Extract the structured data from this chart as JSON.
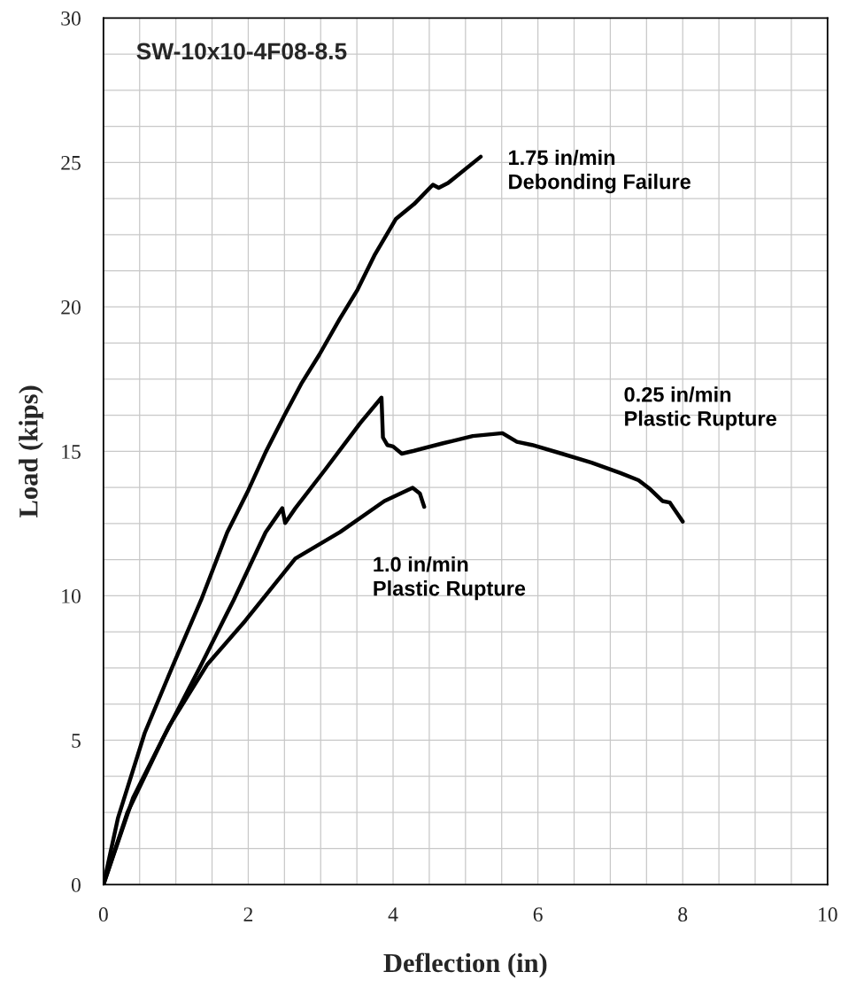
{
  "chart_data": {
    "type": "line",
    "title": "SW-10x10-4F08-8.5",
    "xlabel": "Deflection (in)",
    "ylabel": "Load (kips)",
    "xlim": [
      0,
      10
    ],
    "ylim": [
      0,
      30
    ],
    "xticks": [
      0,
      {
        "value": 0.5,
        "label": null
      },
      {
        "value": 1,
        "label": null
      },
      {
        "value": 1.5,
        "label": null
      },
      2,
      {
        "value": 2.5,
        "label": null
      },
      {
        "value": 3,
        "label": null
      },
      {
        "value": 3.5,
        "label": null
      },
      4,
      {
        "value": 4.5,
        "label": null
      },
      {
        "value": 5,
        "label": null
      },
      {
        "value": 5.5,
        "label": null
      },
      6,
      {
        "value": 6.5,
        "label": null
      },
      {
        "value": 7,
        "label": null
      },
      {
        "value": 7.5,
        "label": null
      },
      8,
      {
        "value": 8.5,
        "label": null
      },
      {
        "value": 9,
        "label": null
      },
      {
        "value": 9.5,
        "label": null
      },
      10
    ],
    "yticks": [
      0,
      {
        "value": 1.25,
        "label": null
      },
      {
        "value": 2.5,
        "label": null
      },
      {
        "value": 3.75,
        "label": null
      },
      5,
      {
        "value": 6.25,
        "label": null
      },
      {
        "value": 7.5,
        "label": null
      },
      {
        "value": 8.75,
        "label": null
      },
      10,
      {
        "value": 11.25,
        "label": null
      },
      {
        "value": 12.5,
        "label": null
      },
      {
        "value": 13.75,
        "label": null
      },
      15,
      {
        "value": 16.25,
        "label": null
      },
      {
        "value": 17.5,
        "label": null
      },
      {
        "value": 18.75,
        "label": null
      },
      20,
      {
        "value": 21.25,
        "label": null
      },
      {
        "value": 22.5,
        "label": null
      },
      {
        "value": 23.75,
        "label": null
      },
      25,
      {
        "value": 26.25,
        "label": null
      },
      {
        "value": 27.5,
        "label": null
      },
      {
        "value": 28.75,
        "label": null
      },
      30
    ],
    "grid": true,
    "legend": false,
    "marker": "none",
    "line_style": "solid",
    "series": [
      {
        "name": "1.75 in/min\nDebonding Failure",
        "color": "#000000",
        "x": [
          0,
          0.2,
          0.57,
          0.98,
          1.35,
          1.71,
          2.0,
          2.24,
          2.49,
          2.73,
          2.98,
          3.26,
          3.51,
          3.75,
          4.04,
          4.29,
          4.55,
          4.63,
          4.76,
          5.21
        ],
        "values": [
          0,
          2.3,
          5.25,
          7.71,
          9.86,
          12.2,
          13.65,
          14.97,
          16.2,
          17.33,
          18.34,
          19.57,
          20.6,
          21.82,
          23.05,
          23.56,
          24.23,
          24.12,
          24.29,
          25.2
        ]
      },
      {
        "name": "0.25 in/min\nPlastic Rupture",
        "color": "#000000",
        "x": [
          0,
          0.33,
          0.82,
          1.35,
          1.8,
          2.24,
          2.47,
          2.51,
          2.65,
          3.06,
          3.55,
          3.84,
          3.86,
          3.92,
          4.0,
          4.12,
          4.29,
          4.69,
          5.1,
          5.51,
          5.71,
          5.92,
          6.33,
          6.74,
          7.14,
          7.39,
          7.55,
          7.72,
          7.82,
          8.0
        ],
        "values": [
          0,
          2.49,
          5.05,
          7.61,
          9.86,
          12.2,
          13.03,
          12.52,
          13.03,
          14.36,
          15.99,
          16.86,
          15.48,
          15.22,
          15.17,
          14.92,
          15.02,
          15.28,
          15.53,
          15.63,
          15.33,
          15.22,
          14.92,
          14.61,
          14.25,
          14.0,
          13.69,
          13.28,
          13.23,
          12.57
        ]
      },
      {
        "name": "1.0 in/min\nPlastic Rupture",
        "color": "#000000",
        "x": [
          0,
          0.41,
          0.9,
          1.43,
          1.96,
          2.65,
          3.27,
          3.88,
          4.27,
          4.37,
          4.43
        ],
        "values": [
          0,
          3.01,
          5.46,
          7.61,
          9.14,
          11.29,
          12.21,
          13.28,
          13.74,
          13.54,
          13.08
        ]
      }
    ]
  }
}
